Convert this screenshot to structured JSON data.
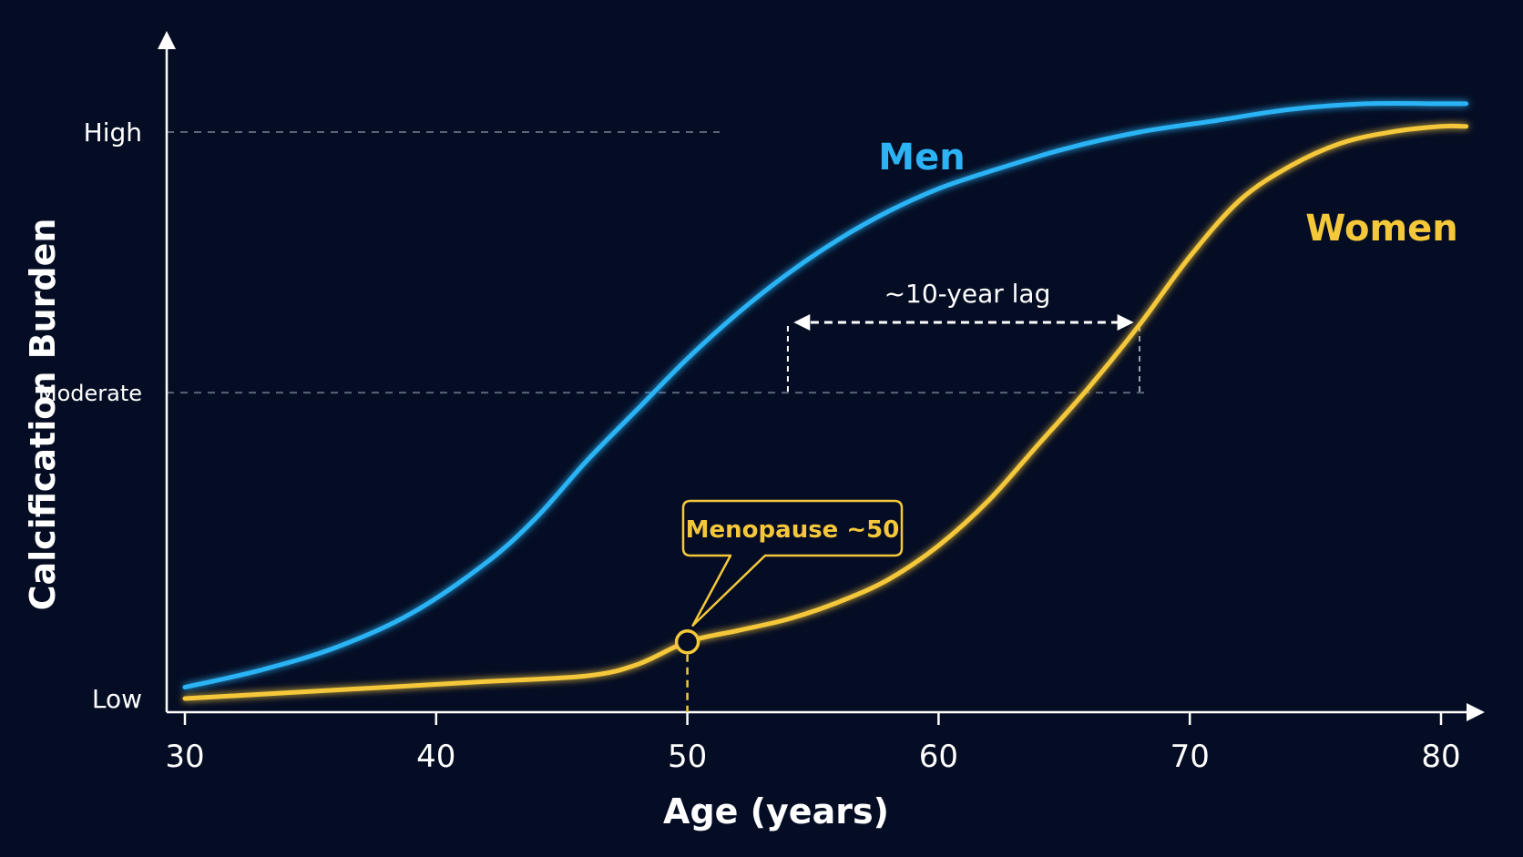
{
  "chart_data": {
    "type": "line",
    "xlabel": "Age (years)",
    "ylabel": "Calcification Burden",
    "xlim": [
      30,
      81
    ],
    "x_ticks": [
      30,
      40,
      50,
      60,
      70,
      80
    ],
    "y_ticks": [
      {
        "label": "High",
        "value": 1.0
      },
      {
        "label": "Moderate",
        "value": 0.54
      },
      {
        "label": "Low",
        "value": 0.0
      }
    ],
    "ylim": [
      0,
      1.1
    ],
    "highlighted_tick": 50,
    "series": [
      {
        "name": "Men",
        "color": "#2bb3f5",
        "x": [
          30,
          33,
          36,
          39,
          42,
          44,
          46,
          48,
          50,
          52,
          54,
          56,
          58,
          60,
          62,
          65,
          68,
          71,
          74,
          77,
          80,
          81
        ],
        "y": [
          0.02,
          0.05,
          0.09,
          0.15,
          0.24,
          0.32,
          0.42,
          0.51,
          0.6,
          0.68,
          0.75,
          0.81,
          0.86,
          0.9,
          0.93,
          0.97,
          1.0,
          1.02,
          1.04,
          1.05,
          1.05,
          1.05
        ]
      },
      {
        "name": "Women",
        "color": "#f5c83a",
        "x": [
          30,
          34,
          38,
          42,
          46,
          48,
          50,
          52,
          54,
          56,
          58,
          60,
          62,
          64,
          66,
          68,
          70,
          72,
          74,
          76,
          78,
          80,
          81
        ],
        "y": [
          0.0,
          0.01,
          0.02,
          0.03,
          0.04,
          0.06,
          0.1,
          0.12,
          0.14,
          0.17,
          0.21,
          0.27,
          0.35,
          0.45,
          0.55,
          0.66,
          0.78,
          0.88,
          0.94,
          0.98,
          1.0,
          1.01,
          1.01
        ]
      }
    ],
    "annotations": {
      "lag_label": "~10-year lag",
      "lag_from_x": 54,
      "lag_to_x": 68,
      "lag_y": 0.54,
      "callout_label": "Menopause ~50",
      "callout_x": 50,
      "callout_y": 0.1
    },
    "grid": "dashed reference lines at High and Moderate",
    "colors": {
      "background": "#050d24",
      "axis": "#ffffff",
      "grid": "#5a6478",
      "men": "#2bb3f5",
      "women": "#f5c83a"
    }
  }
}
